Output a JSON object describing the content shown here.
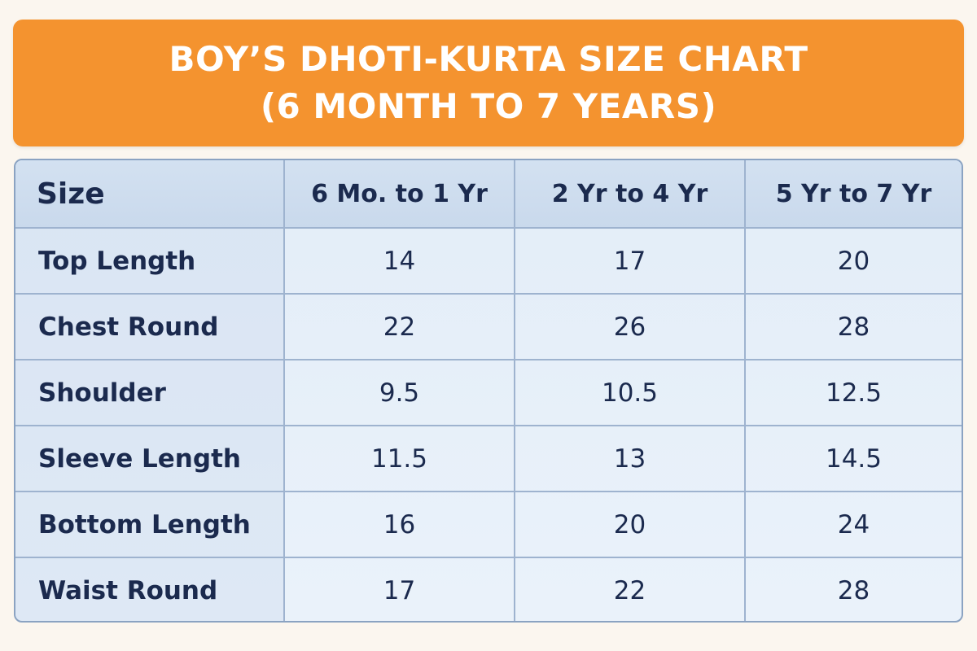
{
  "header": {
    "title_line1": "BOY’S DHOTI-KURTA SIZE CHART",
    "title_line2": "(6 MONTH TO 7 YEARS)"
  },
  "chart_data": {
    "type": "table",
    "title": "BOY’S DHOTI-KURTA SIZE CHART (6 MONTH TO 7 YEARS)",
    "columns": [
      "Size",
      "6 Mo. to 1 Yr",
      "2 Yr to 4 Yr",
      "5 Yr to 7 Yr"
    ],
    "rows": [
      {
        "label": "Top Length",
        "values": [
          "14",
          "17",
          "20"
        ]
      },
      {
        "label": "Chest Round",
        "values": [
          "22",
          "26",
          "28"
        ]
      },
      {
        "label": "Shoulder",
        "values": [
          "9.5",
          "10.5",
          "12.5"
        ]
      },
      {
        "label": "Sleeve Length",
        "values": [
          "11.5",
          "13",
          "14.5"
        ]
      },
      {
        "label": "Bottom Length",
        "values": [
          "16",
          "20",
          "24"
        ]
      },
      {
        "label": "Waist Round",
        "values": [
          "17",
          "22",
          "28"
        ]
      }
    ]
  },
  "colors": {
    "banner": "#f4932f",
    "title_text": "#ffffff",
    "table_text": "#1b2a4e",
    "grid_lines": "#9eb3cf",
    "header_bg": "#cfdef0",
    "body_bg": "#e6eff9",
    "page_bg": "#fbf6ef"
  }
}
